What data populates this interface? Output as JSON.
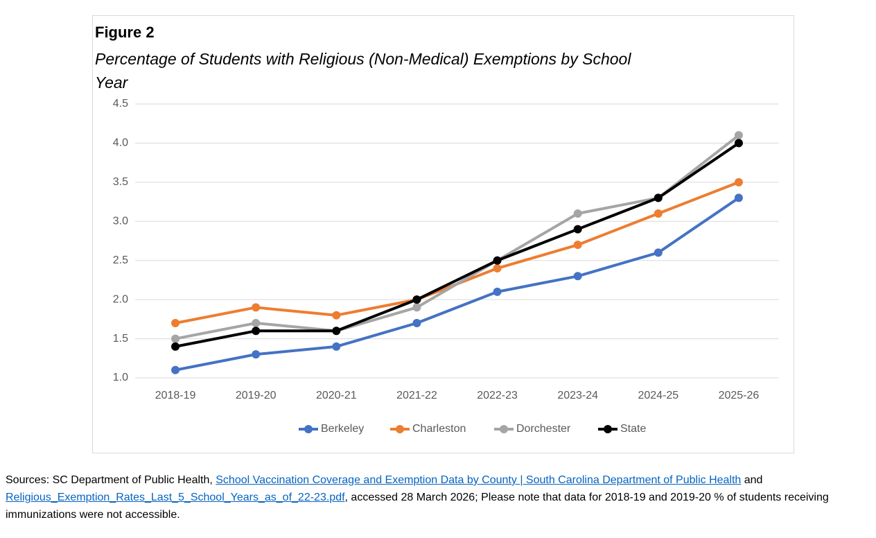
{
  "chart_data": {
    "type": "line",
    "title": "Figure 2",
    "subtitle": "Percentage of Students with Religious (Non-Medical) Exemptions by School Year",
    "categories": [
      "2018-19",
      "2019-20",
      "2020-21",
      "2021-22",
      "2022-23",
      "2023-24",
      "2024-25",
      "2025-26"
    ],
    "series": [
      {
        "name": "Berkeley",
        "color": "#4472c4",
        "values": [
          1.1,
          1.3,
          1.4,
          1.7,
          2.1,
          2.3,
          2.6,
          3.3
        ]
      },
      {
        "name": "Charleston",
        "color": "#ed7d31",
        "values": [
          1.7,
          1.9,
          1.8,
          2.0,
          2.4,
          2.7,
          3.1,
          3.5
        ]
      },
      {
        "name": "Dorchester",
        "color": "#a5a5a5",
        "values": [
          1.5,
          1.7,
          1.6,
          1.9,
          2.5,
          3.1,
          3.3,
          4.1
        ]
      },
      {
        "name": "State",
        "color": "#000000",
        "values": [
          1.4,
          1.6,
          1.6,
          2.0,
          2.5,
          2.9,
          3.3,
          4.0
        ]
      }
    ],
    "ylim": [
      1,
      4.5
    ],
    "yticks": [
      {
        "value": 1,
        "label": "1.0"
      },
      1.5,
      {
        "value": 2,
        "label": "2.0"
      },
      2.5,
      {
        "value": 3,
        "label": "3.0"
      },
      3.5,
      {
        "value": 4,
        "label": "4.0"
      },
      4.5
    ],
    "grid": true,
    "legend": "bottom"
  },
  "sources": [
    "Sources: SC Department of Public Health, ",
    "School Vaccination Coverage and Exemption Data by County | South Carolina Department of Public Health",
    " and ",
    "Religious_Exemption_Rates_Last_5_School_Years_as_of_22-23.pdf",
    ", accessed 28 March 2026;  Please note that data for 2018-19 and 2019-20 % of students receiving immunizations were not accessible."
  ]
}
